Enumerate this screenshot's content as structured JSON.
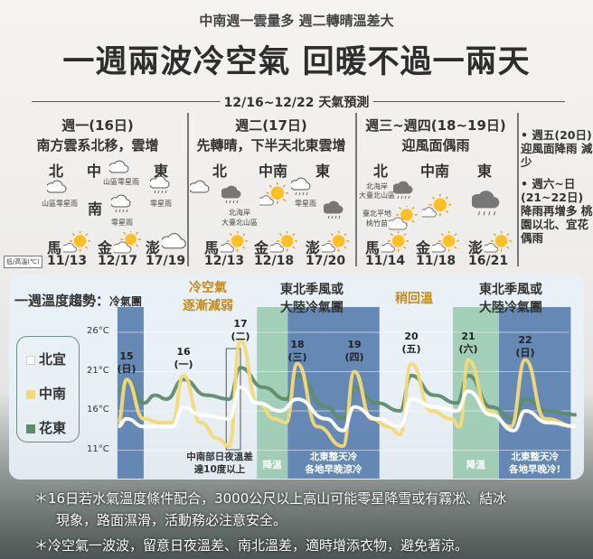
{
  "header": {
    "subtitle": "中南週一雲量多 週二轉晴溫差大",
    "title": "一週兩波冷空氣  回暖不過一兩天",
    "range": "12/16~12/22 天氣預測"
  },
  "panels": [
    {
      "day": "週一(16日)",
      "summary": "南方雲系北移，雲增",
      "regions": {
        "north": "北",
        "central": "中",
        "south": "南",
        "east": "東"
      },
      "notes": {
        "central": "山區零星雨",
        "north": "山區零星雨",
        "south": "零星雨",
        "east": "零星雨"
      },
      "icons": {
        "central": "cloud",
        "north": "cloud",
        "south": "rain",
        "east": "rain"
      },
      "islands": [
        {
          "name": "馬",
          "temp": "11/13",
          "icon": "partly-sunny"
        },
        {
          "name": "金",
          "temp": "12/17",
          "icon": "mostly-cloudy-sun"
        },
        {
          "name": "澎",
          "temp": "17/19",
          "icon": "cloud"
        }
      ]
    },
    {
      "day": "週二(17日)",
      "summary": "先轉晴，下半天北東雲增",
      "regions": {
        "north": "北",
        "centralsouth": "中南",
        "east": "東"
      },
      "notes": {
        "north1": "北海岸",
        "north2": "大臺北山區",
        "east": "零星雨"
      },
      "icons": {
        "north_from": "cloud",
        "north_to": "dark-rain",
        "centralsouth": "partly-sunny",
        "east_from": "rain",
        "east_to": "dark-rain"
      },
      "islands": [
        {
          "name": "馬",
          "temp": "12/13",
          "icon": "partly-sunny"
        },
        {
          "name": "金",
          "temp": "12/18",
          "icon": "partly-sunny"
        },
        {
          "name": "澎",
          "temp": "17/20",
          "icon": "partly-sunny"
        }
      ]
    },
    {
      "day": "週三~週四(18~19日)",
      "summary": "迎風面偶雨",
      "regions": {
        "north": "北",
        "centralsouth": "中南",
        "east": "東"
      },
      "notes": {
        "n1": "北海岸",
        "n2": "大臺北山區",
        "n3": "臺北平地",
        "n4": "桃竹苗"
      },
      "icons": {
        "north_coast": "dark-rain",
        "north_plain": "mostly-cloudy-sun",
        "centralsouth": "partly-sunny",
        "east": "dark-rain"
      },
      "islands": [
        {
          "name": "馬",
          "temp": "11/14",
          "icon": "partly-sunny"
        },
        {
          "name": "金",
          "temp": "11/18",
          "icon": "partly-sunny"
        },
        {
          "name": "澎",
          "temp": "16/21",
          "icon": "partly-sunny"
        }
      ]
    }
  ],
  "side": [
    {
      "bullet": "•",
      "text": "週五(20日) 迎風面降雨 減少"
    },
    {
      "bullet": "•",
      "text": "週六~日 (21~22日) 降雨再增多 桃園以北、宜花偶雨"
    }
  ],
  "low_high_label": "低/高溫(℃)",
  "chart_data": {
    "type": "line",
    "title": "一週溫度趨勢：",
    "title_suffix": "冷氣團",
    "phases": [
      {
        "lines": [
          "冷空氣",
          "逐漸減弱"
        ],
        "color": "#c4891d"
      },
      {
        "lines": [
          "東北季風或",
          "大陸冷氣團"
        ],
        "color": "#333333"
      },
      {
        "lines": [
          "稍回溫"
        ],
        "color": "#c4891d"
      },
      {
        "lines": [
          "東北季風或",
          "大陸冷氣團"
        ],
        "color": "#333333"
      }
    ],
    "yticks": [
      "26°C",
      "21°C",
      "16°C",
      "11°C"
    ],
    "ytick_values": [
      26,
      21,
      16,
      11
    ],
    "ylim": [
      10,
      28
    ],
    "xlim": [
      14.84,
      22.9
    ],
    "day_labels": [
      {
        "d": 15,
        "num": "15",
        "wd": "(日)"
      },
      {
        "d": 16,
        "num": "16",
        "wd": "(一)"
      },
      {
        "d": 17,
        "num": "17",
        "wd": "(二)"
      },
      {
        "d": 18,
        "num": "18",
        "wd": "(三)"
      },
      {
        "d": 19,
        "num": "19",
        "wd": "(四)"
      },
      {
        "d": 20,
        "num": "20",
        "wd": "(五)"
      },
      {
        "d": 21,
        "num": "21",
        "wd": "(六)"
      },
      {
        "d": 22,
        "num": "22",
        "wd": "(日)"
      }
    ],
    "bands": [
      {
        "from": 14.84,
        "to": 15.3,
        "kind": "cold"
      },
      {
        "from": 17.29,
        "to": 17.83,
        "kind": "cooling",
        "label": "降溫"
      },
      {
        "from": 17.83,
        "to": 19.44,
        "kind": "cold",
        "label": "北東整天冷\n各地早晚涼冷"
      },
      {
        "from": 20.73,
        "to": 21.54,
        "kind": "cooling",
        "label": "降溫"
      },
      {
        "from": 21.54,
        "to": 22.8,
        "kind": "cold",
        "label": "北東整天冷\n各地早晚冷!"
      }
    ],
    "annotation": {
      "from": 16.75,
      "to": 17.0,
      "text": "中南部日夜溫差\n達10度以上"
    },
    "band_colors": {
      "cold": "#4f76a8",
      "cooling": "#74b88f"
    },
    "series": [
      {
        "name": "北宜",
        "color": "#ffffff",
        "points": [
          [
            14.85,
            14
          ],
          [
            15.0,
            15
          ],
          [
            15.3,
            14
          ],
          [
            15.8,
            14
          ],
          [
            16.0,
            16.5
          ],
          [
            16.3,
            15.5
          ],
          [
            16.8,
            15
          ],
          [
            17.0,
            19
          ],
          [
            17.3,
            17
          ],
          [
            17.7,
            16
          ],
          [
            18.0,
            17.5
          ],
          [
            18.5,
            15
          ],
          [
            18.8,
            13.5
          ],
          [
            19.0,
            16.5
          ],
          [
            19.4,
            15
          ],
          [
            19.8,
            14
          ],
          [
            20.0,
            17.5
          ],
          [
            20.4,
            16.5
          ],
          [
            20.8,
            16
          ],
          [
            21.0,
            18.5
          ],
          [
            21.4,
            15.5
          ],
          [
            21.8,
            13.5
          ],
          [
            22.0,
            16
          ],
          [
            22.4,
            14.5
          ],
          [
            22.9,
            14
          ]
        ]
      },
      {
        "name": "中南",
        "color": "#f3d97a",
        "points": [
          [
            14.85,
            14.5
          ],
          [
            15.0,
            20
          ],
          [
            15.3,
            15
          ],
          [
            15.6,
            14.5
          ],
          [
            15.8,
            14.5
          ],
          [
            16.0,
            20.5
          ],
          [
            16.3,
            14.5
          ],
          [
            16.6,
            12.5
          ],
          [
            16.8,
            11.5
          ],
          [
            17.0,
            25
          ],
          [
            17.3,
            17
          ],
          [
            17.6,
            15
          ],
          [
            17.8,
            14.5
          ],
          [
            18.0,
            22
          ],
          [
            18.35,
            14
          ],
          [
            18.8,
            11.5
          ],
          [
            19.0,
            21
          ],
          [
            19.3,
            15
          ],
          [
            19.6,
            14
          ],
          [
            19.8,
            13
          ],
          [
            20.0,
            22
          ],
          [
            20.35,
            16
          ],
          [
            20.7,
            15
          ],
          [
            20.85,
            14
          ],
          [
            21.0,
            22.5
          ],
          [
            21.35,
            16
          ],
          [
            21.75,
            14
          ],
          [
            22.0,
            22.5
          ],
          [
            22.35,
            15
          ],
          [
            22.9,
            14
          ]
        ]
      },
      {
        "name": "花東",
        "color": "#5e8c6a",
        "points": [
          [
            14.85,
            18.5
          ],
          [
            15.0,
            20
          ],
          [
            15.3,
            17
          ],
          [
            15.5,
            18
          ],
          [
            15.7,
            17.5
          ],
          [
            16.0,
            20
          ],
          [
            16.4,
            18
          ],
          [
            16.8,
            17.5
          ],
          [
            17.0,
            21.5
          ],
          [
            17.4,
            19
          ],
          [
            17.8,
            17.5
          ],
          [
            18.0,
            20.5
          ],
          [
            18.5,
            16.5
          ],
          [
            18.8,
            15
          ],
          [
            19.0,
            19
          ],
          [
            19.4,
            17
          ],
          [
            19.8,
            16
          ],
          [
            20.0,
            20.5
          ],
          [
            20.4,
            18
          ],
          [
            20.8,
            17
          ],
          [
            21.0,
            20.5
          ],
          [
            21.4,
            16.5
          ],
          [
            21.8,
            15
          ],
          [
            22.0,
            17.5
          ],
          [
            22.4,
            16
          ],
          [
            22.9,
            15.5
          ]
        ]
      }
    ]
  },
  "footnotes": [
    "＊16日若水氣溫度條件配合，3000公尺以上高山可能零星降雪或有霧凇、結冰",
    "現象，路面濕滑，活動務必注意安全。",
    "＊冷空氣一波波，留意日夜溫差、南北溫差，適時增添衣物，避免著涼。"
  ]
}
